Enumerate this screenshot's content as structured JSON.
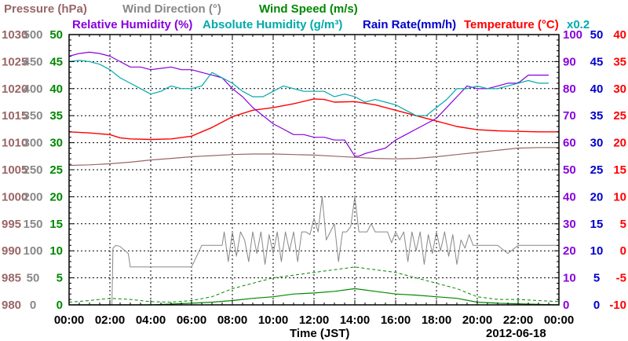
{
  "chart_data": {
    "type": "line",
    "date": "2012-06-18",
    "xlabel": "Time (JST)",
    "x_ticks": [
      "00:00",
      "02:00",
      "04:00",
      "06:00",
      "08:00",
      "10:00",
      "12:00",
      "14:00",
      "16:00",
      "18:00",
      "20:00",
      "22:00",
      "00:00"
    ],
    "xlim": [
      0,
      24
    ],
    "legend": [
      {
        "id": "pressure",
        "label": "Pressure (hPa)",
        "color": "#996666"
      },
      {
        "id": "wind_dir",
        "label": "Wind Direction (°)",
        "color": "#888888"
      },
      {
        "id": "wind_speed",
        "label": "Wind Speed (m/s)",
        "color": "#008800"
      },
      {
        "id": "rel_hum",
        "label": "Relative Humidity (%)",
        "color": "#8800dd"
      },
      {
        "id": "abs_hum",
        "label": "Absolute Humidity (g/m³)",
        "color": "#00aaaa"
      },
      {
        "id": "rain",
        "label": "Rain Rate(mm/h)",
        "color": "#0000cc"
      },
      {
        "id": "temp",
        "label": "Temperature (°C)",
        "color": "#ff0000"
      },
      {
        "id": "scale_note",
        "label": "x0.2",
        "color": "#00aaaa"
      }
    ],
    "axes": [
      {
        "id": "pressure",
        "side": "left",
        "color": "#996666",
        "range": [
          980,
          1030
        ],
        "ticks": [
          "1030",
          "1025",
          "1020",
          "1015",
          "1010",
          "1005",
          "1000",
          "995",
          "990",
          "985",
          "980"
        ]
      },
      {
        "id": "wind_dir",
        "side": "left",
        "color": "#888888",
        "range": [
          0,
          500
        ],
        "ticks": [
          "500",
          "450",
          "400",
          "350",
          "300",
          "250",
          "200",
          "150",
          "100",
          "50",
          "0"
        ]
      },
      {
        "id": "wind_speed",
        "side": "left",
        "color": "#008800",
        "range": [
          0,
          50
        ],
        "ticks": [
          "50",
          "45",
          "40",
          "35",
          "30",
          "25",
          "20",
          "15",
          "10",
          "5",
          "0"
        ]
      },
      {
        "id": "rel_hum",
        "side": "right",
        "color": "#8800dd",
        "range": [
          0,
          100
        ],
        "ticks": [
          "100",
          "90",
          "80",
          "70",
          "60",
          "50",
          "40",
          "30",
          "20",
          "10",
          "0"
        ]
      },
      {
        "id": "rain",
        "side": "right",
        "color": "#0000cc",
        "range": [
          0,
          50
        ],
        "ticks": [
          "50",
          "45",
          "40",
          "35",
          "30",
          "25",
          "20",
          "15",
          "10",
          "5",
          "0"
        ]
      },
      {
        "id": "temp",
        "side": "right",
        "color": "#ff0000",
        "range": [
          -10,
          40
        ],
        "ticks": [
          "40",
          "35",
          "30",
          "25",
          "20",
          "15",
          "10",
          "5",
          "0",
          "-5",
          "-10"
        ]
      }
    ],
    "series": [
      {
        "id": "pressure",
        "axis": "pressure",
        "x": [
          0,
          1,
          2,
          3,
          4,
          5,
          6,
          7,
          8,
          9,
          10,
          11,
          12,
          13,
          14,
          15,
          16,
          17,
          18,
          19,
          20,
          21,
          22,
          23,
          24
        ],
        "y": [
          1005.8,
          1005.9,
          1006.1,
          1006.4,
          1006.8,
          1007.1,
          1007.4,
          1007.6,
          1007.8,
          1007.9,
          1007.9,
          1007.8,
          1007.7,
          1007.5,
          1007.3,
          1007.1,
          1007.0,
          1007.1,
          1007.4,
          1007.8,
          1008.2,
          1008.6,
          1009.0,
          1009.1,
          1009.1
        ]
      },
      {
        "id": "temp",
        "axis": "temp",
        "x": [
          0,
          1,
          2,
          2.5,
          3,
          4,
          5,
          6,
          7,
          8,
          9,
          10,
          11,
          12,
          12.5,
          13,
          14,
          15,
          16,
          17,
          18,
          19,
          20,
          21,
          22,
          23,
          24
        ],
        "y": [
          22.0,
          21.8,
          21.5,
          20.9,
          20.7,
          20.6,
          20.7,
          21.2,
          22.8,
          24.8,
          26.0,
          26.5,
          27.2,
          28.1,
          28.0,
          27.5,
          27.6,
          27.0,
          26.0,
          25.0,
          24.0,
          23.0,
          22.4,
          22.2,
          22.1,
          22.0,
          22.0
        ]
      },
      {
        "id": "rel_hum",
        "axis": "rel_hum",
        "x": [
          0,
          0.5,
          1,
          1.5,
          2,
          2.5,
          3,
          3.5,
          4,
          4.5,
          5,
          5.5,
          6,
          6.5,
          7,
          7.5,
          8,
          8.5,
          9,
          9.5,
          10,
          10.5,
          11,
          11.5,
          12,
          12.5,
          13,
          13.5,
          14,
          14.2,
          14.5,
          15,
          15.5,
          16,
          16.5,
          17,
          17.5,
          18,
          18.5,
          19,
          19.5,
          20,
          20.5,
          21,
          21.5,
          22,
          22.5,
          23,
          23.5
        ],
        "y": [
          92,
          93,
          93.5,
          93,
          92,
          90,
          88,
          88,
          87,
          87.5,
          88,
          87,
          87,
          86,
          85,
          84,
          80,
          77,
          73,
          70,
          67,
          65,
          63,
          63,
          62,
          62,
          61,
          61,
          55,
          55,
          56,
          57,
          58,
          61,
          63,
          65,
          67,
          69,
          73,
          77,
          81,
          80,
          80,
          81,
          82,
          82,
          85,
          85,
          85
        ]
      },
      {
        "id": "abs_hum",
        "axis": "rel_hum",
        "x": [
          0,
          0.5,
          1,
          1.5,
          2,
          2.5,
          3,
          3.5,
          4,
          4.5,
          5,
          5.5,
          6,
          6.5,
          7,
          7.5,
          8,
          8.5,
          9,
          9.5,
          10,
          10.5,
          11,
          11.5,
          12,
          12.5,
          13,
          13.5,
          14,
          14.5,
          15,
          15.5,
          16,
          16.5,
          17,
          17.5,
          18,
          18.5,
          19,
          19.5,
          20,
          20.5,
          21,
          21.5,
          22,
          22.5,
          23,
          23.5
        ],
        "y": [
          90,
          90.5,
          90,
          89,
          87,
          84,
          82,
          80,
          78,
          79,
          81,
          80,
          80,
          81,
          86,
          84,
          82,
          79,
          77,
          77,
          79,
          81,
          80,
          79,
          79,
          79,
          77,
          78,
          77,
          75,
          76,
          75,
          74,
          72,
          70,
          70,
          73,
          76,
          80,
          80,
          81,
          80,
          80,
          81,
          82,
          83,
          82,
          82
        ]
      },
      {
        "id": "wind_dir",
        "axis": "wind_dir",
        "x": [
          0,
          2.1,
          2.15,
          2.3,
          2.5,
          2.9,
          3,
          3.5,
          4,
          5,
          6,
          6.5,
          7,
          7.5,
          7.6,
          7.8,
          8,
          8.2,
          8.4,
          8.6,
          8.8,
          9,
          9.2,
          9.4,
          9.6,
          9.8,
          10,
          10.2,
          10.4,
          10.6,
          10.8,
          11,
          11.2,
          11.4,
          11.6,
          11.8,
          12,
          12.2,
          12.4,
          12.6,
          12.8,
          13,
          13.2,
          13.4,
          13.6,
          13.8,
          14,
          14.2,
          14.4,
          14.6,
          14.8,
          15,
          15.2,
          15.4,
          15.6,
          15.8,
          16,
          16.2,
          16.4,
          16.6,
          16.8,
          17,
          17.2,
          17.4,
          17.6,
          17.8,
          18,
          18.2,
          18.4,
          18.6,
          18.8,
          19,
          19.2,
          19.4,
          19.6,
          19.8,
          20,
          20.5,
          21,
          21.5,
          22,
          23,
          23.9
        ],
        "y": [
          0,
          0,
          105,
          110,
          108,
          95,
          70,
          70,
          70,
          70,
          70,
          110,
          110,
          110,
          135,
          80,
          135,
          90,
          135,
          120,
          80,
          135,
          95,
          135,
          75,
          130,
          95,
          135,
          80,
          135,
          100,
          135,
          80,
          135,
          135,
          130,
          160,
          135,
          200,
          120,
          135,
          150,
          80,
          135,
          135,
          145,
          200,
          135,
          135,
          135,
          150,
          135,
          135,
          135,
          135,
          115,
          135,
          120,
          135,
          80,
          135,
          100,
          135,
          75,
          130,
          95,
          135,
          100,
          135,
          90,
          130,
          75,
          120,
          105,
          130,
          110,
          110,
          110,
          110,
          95,
          110,
          110,
          110
        ]
      },
      {
        "id": "wind_speed",
        "axis": "wind_speed",
        "x": [
          0,
          1,
          2,
          3,
          4,
          5,
          6,
          7,
          8,
          9,
          10,
          11,
          12,
          13,
          14,
          15,
          16,
          17,
          18,
          19,
          20,
          21,
          22,
          23,
          24
        ],
        "y": [
          0.5,
          0.8,
          1.2,
          1.0,
          0.6,
          0.5,
          0.8,
          1.5,
          3.0,
          4.0,
          5.0,
          5.5,
          6.0,
          6.5,
          7.0,
          6.5,
          6.0,
          5.0,
          4.0,
          3.0,
          1.5,
          1.0,
          1.0,
          0.8,
          0.6
        ]
      },
      {
        "id": "wind_speed_solid",
        "axis": "wind_speed",
        "x": [
          0,
          2,
          4,
          6,
          7,
          8,
          9,
          10,
          11,
          12,
          13,
          14,
          15,
          16,
          17,
          18,
          19,
          20,
          21,
          22,
          23,
          24
        ],
        "y": [
          0,
          0,
          0,
          0.3,
          0.5,
          0.8,
          1.2,
          1.5,
          2.0,
          2.2,
          2.5,
          3.0,
          2.5,
          2.0,
          1.8,
          1.5,
          1.2,
          0.5,
          0.3,
          0.2,
          0.1,
          0
        ]
      }
    ]
  }
}
